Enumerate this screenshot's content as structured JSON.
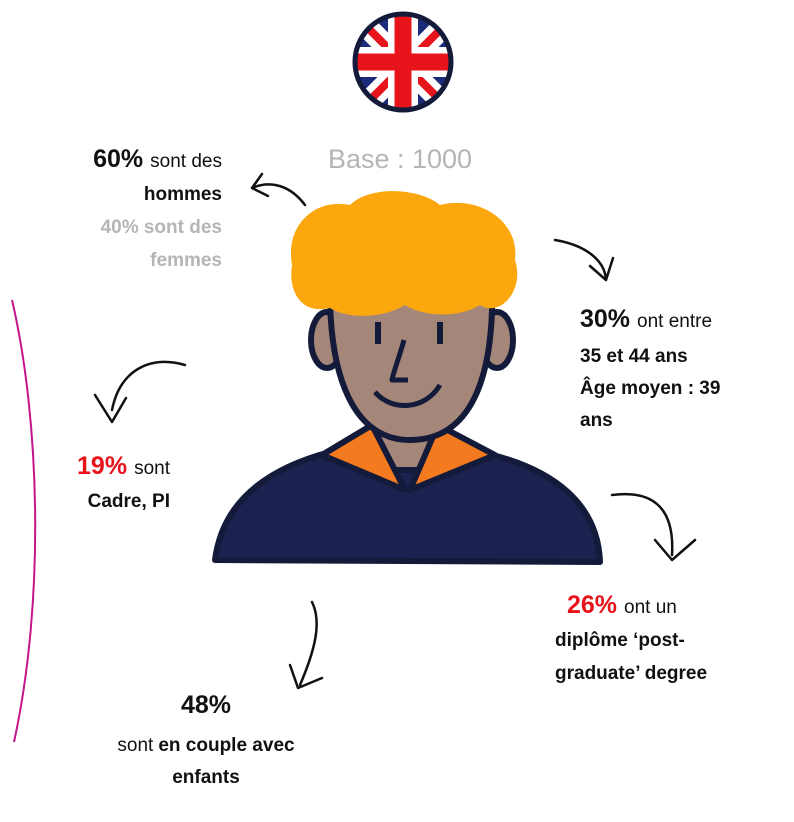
{
  "base": "Base : 1000",
  "stats": {
    "gender": {
      "figure": "60%",
      "text": "sont des",
      "lines": [
        "hommes"
      ],
      "secondary": [
        "40% sont des",
        "femmes"
      ]
    },
    "age": {
      "figure": "30%",
      "text": "ont entre",
      "lines": [
        "35 et 44 ans",
        "Âge moyen : 39",
        "ans"
      ]
    },
    "job": {
      "figure": "19%",
      "text": "sont",
      "lines": [
        "Cadre, PI"
      ]
    },
    "degree": {
      "figure": "26%",
      "text": "ont un",
      "lines": [
        "diplôme ‘post-",
        "graduate’ degree"
      ]
    },
    "family": {
      "figure": "48%",
      "text": "sont",
      "bold": "en couple avec",
      "lines": [
        "enfants"
      ]
    }
  }
}
